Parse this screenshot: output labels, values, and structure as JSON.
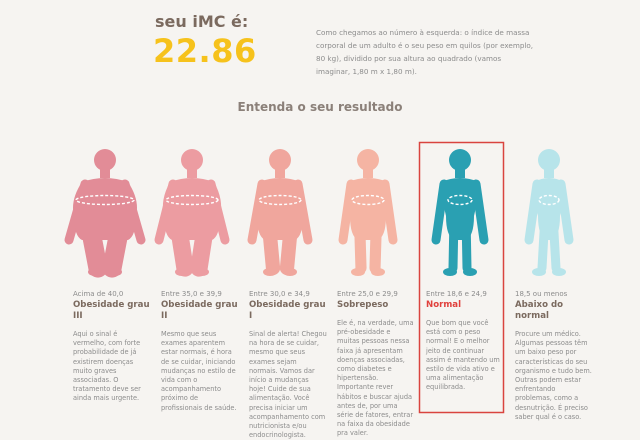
{
  "header": {
    "label": "seu iMC é:",
    "value": "22.86",
    "description": "Como chegamos ao número à esquerda: o índice de massa corporal de um adulto é o seu peso em quilos (por exemplo, 80 kg), dividido por sua altura ao quadrado (vamos imaginar, 1,80 m x 1,80 m)."
  },
  "section_title": "Entenda o seu resultado",
  "categories": [
    {
      "range": "Acima de 40,0",
      "name": "Obesidade grau III",
      "description": "Aqui o sinal é vermelho, com forte probabilidade de já existirem doenças muito graves associadas. O tratamento deve ser ainda mais urgente."
    },
    {
      "range": "Entre 35,0 e 39,9",
      "name": "Obesidade grau II",
      "description": "Mesmo que seus exames aparentem estar normais, é hora de se cuidar, iniciando mudanças no estilo de vida com o acompanhamento próximo de profissionais de saúde."
    },
    {
      "range": "Entre 30,0 e 34,9",
      "name": "Obesidade grau I",
      "description": "Sinal de alerta! Chegou na hora de se cuidar, mesmo que seus exames sejam normais. Vamos dar início a mudanças hoje! Cuide de sua alimentação. Você precisa iniciar um acompanhamento com nutricionista e/ou endocrinologista."
    },
    {
      "range": "Entre 25,0 e 29,9",
      "name": "Sobrepeso",
      "description": "Ele é, na verdade, uma pré-obesidade e muitas pessoas nessa faixa já apresentam doenças associadas, como diabetes e hipertensão. Importante rever hábitos e buscar ajuda antes de, por uma série de fatores, entrar na faixa da obesidade pra valer."
    },
    {
      "range": "Entre 18,6 e 24,9",
      "name": "Normal",
      "description": "Que bom que você está com o peso normal! E o melhor jeito de continuar assim é mantendo um estilo de vida ativo e uma alimentação equilibrada."
    },
    {
      "range": "18,5 ou menos",
      "name": "Abaixo do normal",
      "description": "Procure um médico. Algumas pessoas têm um baixo peso por características do seu organismo e tudo bem. Outras podem estar enfrentando problemas, como a desnutrição. É preciso saber qual é o caso."
    }
  ]
}
